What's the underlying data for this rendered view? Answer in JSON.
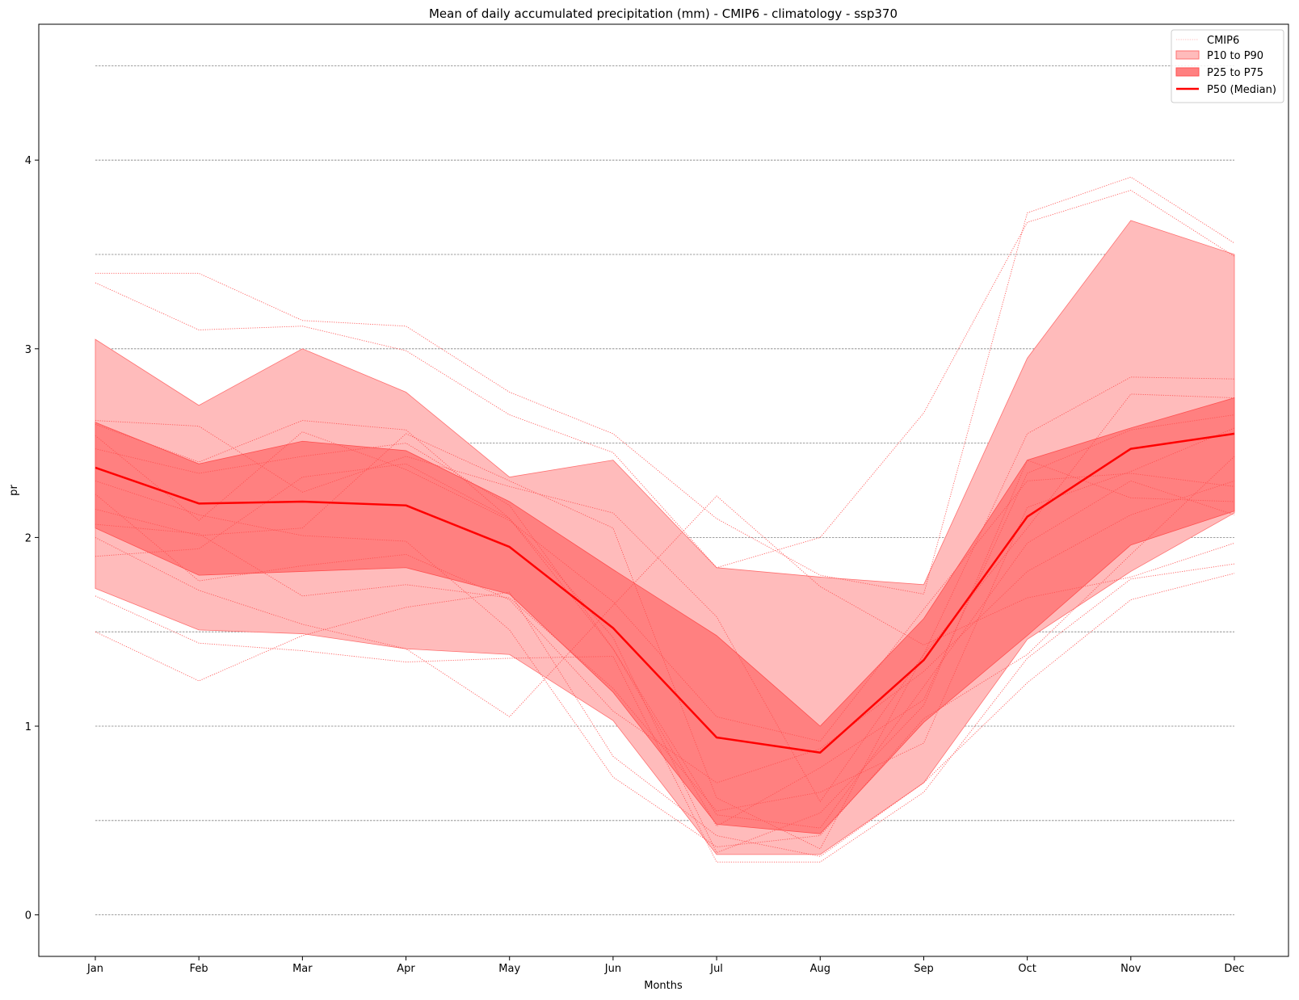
{
  "chart_data": {
    "type": "line",
    "title": "Mean of daily accumulated precipitation (mm) - CMIP6 - climatology  - ssp370",
    "xlabel": "Months",
    "ylabel": "pr",
    "categories": [
      "Jan",
      "Feb",
      "Mar",
      "Apr",
      "May",
      "Jun",
      "Jul",
      "Aug",
      "Sep",
      "Oct",
      "Nov",
      "Dec"
    ],
    "ylim": [
      -0.22,
      4.72
    ],
    "yticks": [
      0,
      1,
      2,
      3,
      4
    ],
    "gridlines": [
      0,
      0.5,
      1,
      1.5,
      2,
      2.5,
      3,
      3.5,
      4,
      4.5
    ],
    "grid": "horizontal-dashed",
    "legend_position": "top-right",
    "legend": {
      "cmip6": "CMIP6",
      "p10_p90": "P10 to P90",
      "p25_p75": "P25 to P75",
      "p50": "P50 (Median)"
    },
    "colors": {
      "median": "#ff0000",
      "band_outer": "#ffbbbb",
      "band_inner": "#ff8080",
      "member": "#ff4d4d",
      "grid": "#808080"
    },
    "bands": {
      "p10": [
        1.73,
        1.51,
        1.49,
        1.41,
        1.38,
        1.03,
        0.32,
        0.32,
        0.7,
        1.46,
        1.82,
        2.13
      ],
      "p90": [
        3.05,
        2.7,
        3.0,
        2.77,
        2.32,
        2.41,
        1.84,
        1.79,
        1.75,
        2.95,
        3.68,
        3.5
      ],
      "p25": [
        2.05,
        1.8,
        1.82,
        1.84,
        1.7,
        1.18,
        0.48,
        0.43,
        1.02,
        1.48,
        1.96,
        2.14
      ],
      "p75": [
        2.61,
        2.39,
        2.51,
        2.46,
        2.19,
        1.83,
        1.48,
        1.0,
        1.57,
        2.41,
        2.58,
        2.74
      ]
    },
    "series": [
      {
        "name": "P50 (Median)",
        "values": [
          2.37,
          2.18,
          2.19,
          2.17,
          1.95,
          1.52,
          0.94,
          0.86,
          1.35,
          2.11,
          2.47,
          2.55
        ]
      },
      {
        "name": "CMIP6",
        "values": [
          3.4,
          3.4,
          3.15,
          3.12,
          2.77,
          2.55,
          2.1,
          1.8,
          1.7,
          3.72,
          3.91,
          3.56
        ]
      },
      {
        "name": "CMIP6",
        "values": [
          3.35,
          3.1,
          3.12,
          2.99,
          2.65,
          2.45,
          1.84,
          2.0,
          2.66,
          3.67,
          3.84,
          3.49
        ]
      },
      {
        "name": "CMIP6",
        "values": [
          1.69,
          1.44,
          1.4,
          1.34,
          1.36,
          1.37,
          0.28,
          0.28,
          0.65,
          1.36,
          1.78,
          1.86
        ]
      },
      {
        "name": "CMIP6",
        "values": [
          1.5,
          1.24,
          1.48,
          1.63,
          1.71,
          0.84,
          0.42,
          0.31,
          0.7,
          1.23,
          1.67,
          1.81
        ]
      },
      {
        "name": "CMIP6",
        "values": [
          2.62,
          2.59,
          2.24,
          2.43,
          2.27,
          2.13,
          1.58,
          0.6,
          1.38,
          2.05,
          2.76,
          2.74
        ]
      },
      {
        "name": "CMIP6",
        "values": [
          2.0,
          1.72,
          1.54,
          1.41,
          1.05,
          1.64,
          2.22,
          1.74,
          1.43,
          1.68,
          1.79,
          1.97
        ]
      },
      {
        "name": "CMIP6",
        "values": [
          2.15,
          2.01,
          2.05,
          2.55,
          2.3,
          2.05,
          0.62,
          0.35,
          1.38,
          2.55,
          2.85,
          2.84
        ]
      },
      {
        "name": "CMIP6",
        "values": [
          2.54,
          2.09,
          2.56,
          2.36,
          2.09,
          1.66,
          1.05,
          0.92,
          1.62,
          2.3,
          2.34,
          2.27
        ]
      },
      {
        "name": "CMIP6",
        "values": [
          1.9,
          1.94,
          2.32,
          2.39,
          2.1,
          1.47,
          0.33,
          0.54,
          1.11,
          2.41,
          2.21,
          2.19
        ]
      },
      {
        "name": "CMIP6",
        "values": [
          2.47,
          2.34,
          2.43,
          2.5,
          2.17,
          1.41,
          0.53,
          0.46,
          1.21,
          1.97,
          2.3,
          2.12
        ]
      },
      {
        "name": "CMIP6",
        "values": [
          2.3,
          2.12,
          2.01,
          1.98,
          1.51,
          0.73,
          0.36,
          0.42,
          1.04,
          1.38,
          1.91,
          2.43
        ]
      },
      {
        "name": "CMIP6",
        "values": [
          2.07,
          2.02,
          1.69,
          1.75,
          1.68,
          1.2,
          0.55,
          0.65,
          0.91,
          2.16,
          2.35,
          2.58
        ]
      },
      {
        "name": "CMIP6",
        "values": [
          2.23,
          1.77,
          1.85,
          1.91,
          1.67,
          1.08,
          0.7,
          0.88,
          1.29,
          1.82,
          2.12,
          2.3
        ]
      },
      {
        "name": "CMIP6",
        "values": [
          2.6,
          2.4,
          2.62,
          2.57,
          2.1,
          1.41,
          0.47,
          0.78,
          1.14,
          2.34,
          2.57,
          2.65
        ]
      }
    ]
  }
}
